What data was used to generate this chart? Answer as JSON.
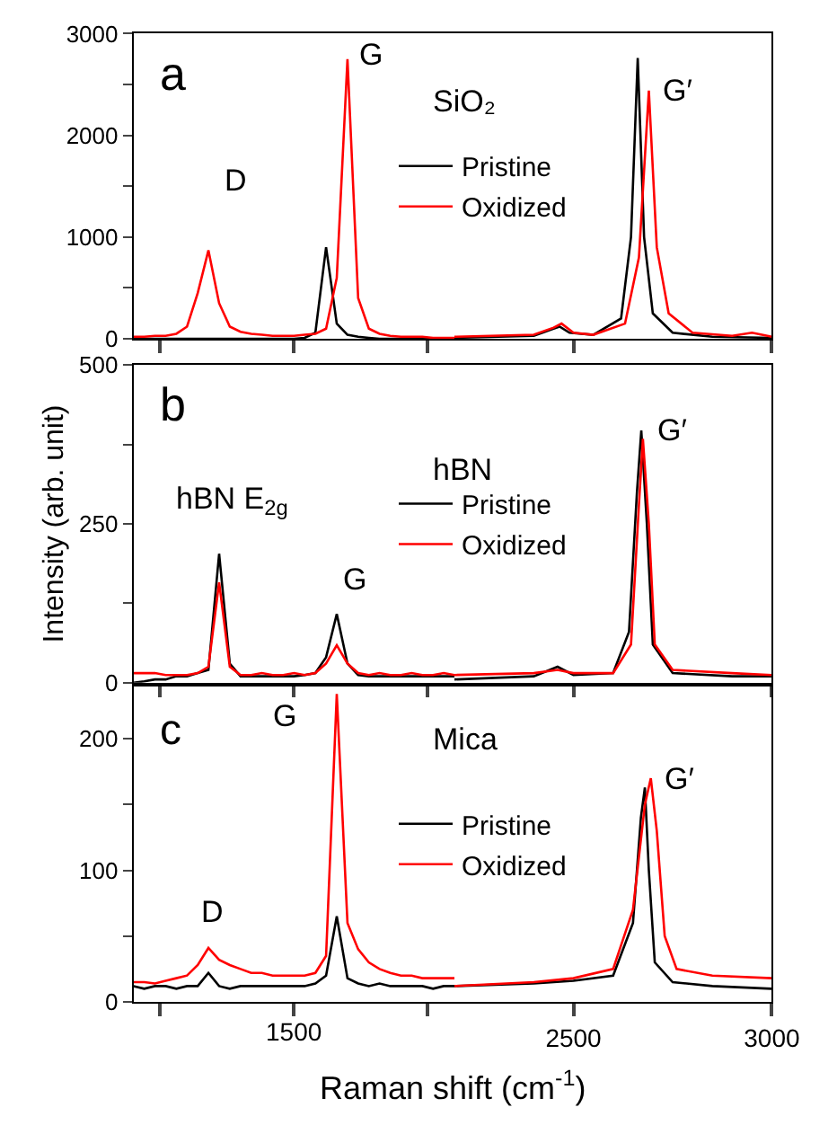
{
  "chart_data": [
    {
      "type": "line",
      "categories": [
        null,
        null,
        null,
        null,
        null,
        null,
        null,
        null,
        null,
        null,
        null,
        null,
        null,
        null,
        null,
        null,
        null,
        null,
        null,
        null,
        null,
        null,
        null,
        null,
        null,
        null,
        null,
        null,
        null,
        null,
        null
      ],
      "ylim": [
        0,
        3000
      ],
      "yticks": [
        0,
        {
          "value": 500,
          "label": null
        },
        1000,
        {
          "value": 1500,
          "label": null
        },
        2000,
        {
          "value": 2500,
          "label": null
        },
        3000
      ],
      "tick_labels": "y",
      "grid": false,
      "legend": false,
      "annotations": [
        "a",
        "D",
        "G"
      ],
      "series": [
        {
          "color": "#000000",
          "values": [
            0,
            0,
            0,
            0,
            0,
            0,
            0,
            0,
            0,
            0,
            0,
            0,
            0,
            0,
            0,
            0,
            10,
            60,
            900,
            150,
            40,
            20,
            10,
            0,
            0,
            0,
            0,
            0,
            0,
            0,
            0
          ]
        },
        {
          "color": "#ff0000",
          "values": [
            20,
            20,
            30,
            30,
            50,
            120,
            450,
            870,
            350,
            120,
            70,
            50,
            40,
            30,
            30,
            30,
            40,
            50,
            100,
            600,
            2750,
            400,
            100,
            50,
            30,
            20,
            20,
            20,
            10,
            10,
            10
          ]
        }
      ]
    },
    {
      "type": "line",
      "xlim": [
        2200,
        3000
      ],
      "xticks": [
        2500,
        3000
      ],
      "ylim": [
        0,
        3000
      ],
      "tick_labels": false,
      "grid": false,
      "legend": "left",
      "annotations": [
        "SiO₂",
        {
          "text": "G′",
          "x": 2690,
          "y": 2440
        }
      ],
      "series": [
        {
          "name": "Pristine",
          "color": "#000000",
          "x": [
            2200,
            2400,
            2450,
            2465,
            2490,
            2550,
            2620,
            2645,
            2662,
            2678,
            2700,
            2750,
            2850,
            3000
          ],
          "values": [
            10,
            30,
            100,
            120,
            60,
            40,
            200,
            1000,
            2760,
            1000,
            250,
            60,
            20,
            10
          ]
        },
        {
          "name": "Oxidized",
          "color": "#ff0000",
          "x": [
            2200,
            2400,
            2450,
            2470,
            2500,
            2550,
            2630,
            2665,
            2690,
            2710,
            2740,
            2800,
            2900,
            2950,
            3000
          ],
          "values": [
            20,
            40,
            110,
            150,
            60,
            40,
            150,
            800,
            2440,
            900,
            250,
            60,
            30,
            60,
            20
          ]
        }
      ]
    },
    {
      "type": "line",
      "ylabel": "Intensity (arb. unit)",
      "categories": [
        null,
        null,
        null,
        null,
        null,
        null,
        null,
        null,
        null,
        null,
        null,
        null,
        null,
        null,
        null,
        null,
        null,
        null,
        null,
        null,
        null,
        null,
        null,
        null,
        null,
        null,
        null,
        null,
        null,
        null,
        null
      ],
      "ylim": [
        0,
        500
      ],
      "yticks": [
        0,
        {
          "value": 125,
          "label": null
        },
        250,
        {
          "value": 375,
          "label": null
        },
        500
      ],
      "tick_labels": "y",
      "grid": false,
      "legend": false,
      "annotations": [
        "b",
        "hBN E$_{2g}$",
        "G"
      ],
      "series": [
        {
          "color": "#000000",
          "values": [
            0,
            2,
            5,
            5,
            10,
            10,
            15,
            20,
            203,
            30,
            10,
            10,
            10,
            10,
            10,
            10,
            12,
            15,
            40,
            108,
            30,
            12,
            10,
            10,
            10,
            10,
            10,
            10,
            10,
            10,
            10
          ]
        },
        {
          "color": "#ff0000",
          "values": [
            15,
            15,
            15,
            12,
            12,
            12,
            15,
            25,
            158,
            25,
            12,
            12,
            15,
            12,
            12,
            15,
            12,
            15,
            30,
            59,
            30,
            15,
            12,
            15,
            12,
            12,
            15,
            12,
            12,
            15,
            12
          ]
        }
      ]
    },
    {
      "type": "line",
      "xlim": [
        2200,
        3000
      ],
      "xticks": [
        2500,
        3000
      ],
      "ylim": [
        0,
        500
      ],
      "tick_labels": false,
      "grid": false,
      "legend": "left",
      "annotations": [
        "hBN",
        {
          "text": "G′",
          "x": 2675,
          "y": 397
        }
      ],
      "series": [
        {
          "name": "Pristine",
          "color": "#000000",
          "x": [
            2200,
            2400,
            2460,
            2500,
            2600,
            2640,
            2660,
            2671,
            2685,
            2700,
            2750,
            2900,
            3000
          ],
          "values": [
            5,
            10,
            25,
            12,
            15,
            80,
            300,
            397,
            250,
            60,
            15,
            10,
            10
          ]
        },
        {
          "name": "Oxidized",
          "color": "#ff0000",
          "x": [
            2200,
            2400,
            2460,
            2500,
            2600,
            2645,
            2665,
            2675,
            2690,
            2705,
            2750,
            2900,
            3000
          ],
          "values": [
            12,
            15,
            20,
            15,
            15,
            60,
            280,
            384,
            250,
            60,
            20,
            15,
            12
          ]
        }
      ]
    },
    {
      "type": "line",
      "xlabel": "Raman shift (cm$^{-1}$)",
      "categories": [
        null,
        null,
        null,
        null,
        null,
        null,
        null,
        null,
        null,
        null,
        null,
        null,
        null,
        null,
        null,
        null,
        null,
        null,
        null,
        null,
        null,
        null,
        null,
        null,
        null,
        null,
        null,
        null,
        null,
        null,
        null
      ],
      "ylim": [
        0,
        240
      ],
      "yticks": [
        0,
        {
          "value": 50,
          "label": null
        },
        100,
        {
          "value": 150,
          "label": null
        },
        200
      ],
      "tick_labels": "y",
      "grid": false,
      "legend": false,
      "annotations": [
        "c",
        "G",
        "D",
        "1500"
      ],
      "series": [
        {
          "color": "#000000",
          "values": [
            12,
            10,
            12,
            12,
            10,
            12,
            12,
            22,
            12,
            10,
            12,
            12,
            12,
            12,
            12,
            12,
            12,
            14,
            20,
            65,
            18,
            14,
            12,
            14,
            12,
            12,
            12,
            12,
            10,
            12,
            12
          ]
        },
        {
          "color": "#ff0000",
          "values": [
            15,
            15,
            14,
            16,
            18,
            20,
            28,
            41,
            32,
            28,
            25,
            22,
            22,
            20,
            20,
            20,
            20,
            22,
            35,
            234,
            60,
            40,
            30,
            25,
            22,
            20,
            20,
            18,
            18,
            18,
            18
          ]
        }
      ]
    },
    {
      "type": "line",
      "xlim": [
        2200,
        3000
      ],
      "xticks": [
        2500,
        3000
      ],
      "ylim": [
        0,
        240
      ],
      "tick_labels": "x",
      "grid": false,
      "legend": "left",
      "annotations": [
        "Mica",
        {
          "text": "G′",
          "x": 2695,
          "y": 170
        }
      ],
      "series": [
        {
          "name": "Pristine",
          "color": "#000000",
          "x": [
            2200,
            2400,
            2500,
            2600,
            2650,
            2670,
            2680,
            2690,
            2705,
            2750,
            2850,
            3000
          ],
          "values": [
            12,
            14,
            16,
            20,
            60,
            140,
            163,
            100,
            30,
            15,
            12,
            10
          ]
        },
        {
          "name": "Oxidized",
          "color": "#ff0000",
          "x": [
            2200,
            2400,
            2500,
            2600,
            2650,
            2680,
            2695,
            2710,
            2730,
            2760,
            2850,
            3000
          ],
          "values": [
            12,
            15,
            18,
            25,
            70,
            150,
            170,
            130,
            50,
            25,
            20,
            18
          ]
        }
      ]
    }
  ]
}
